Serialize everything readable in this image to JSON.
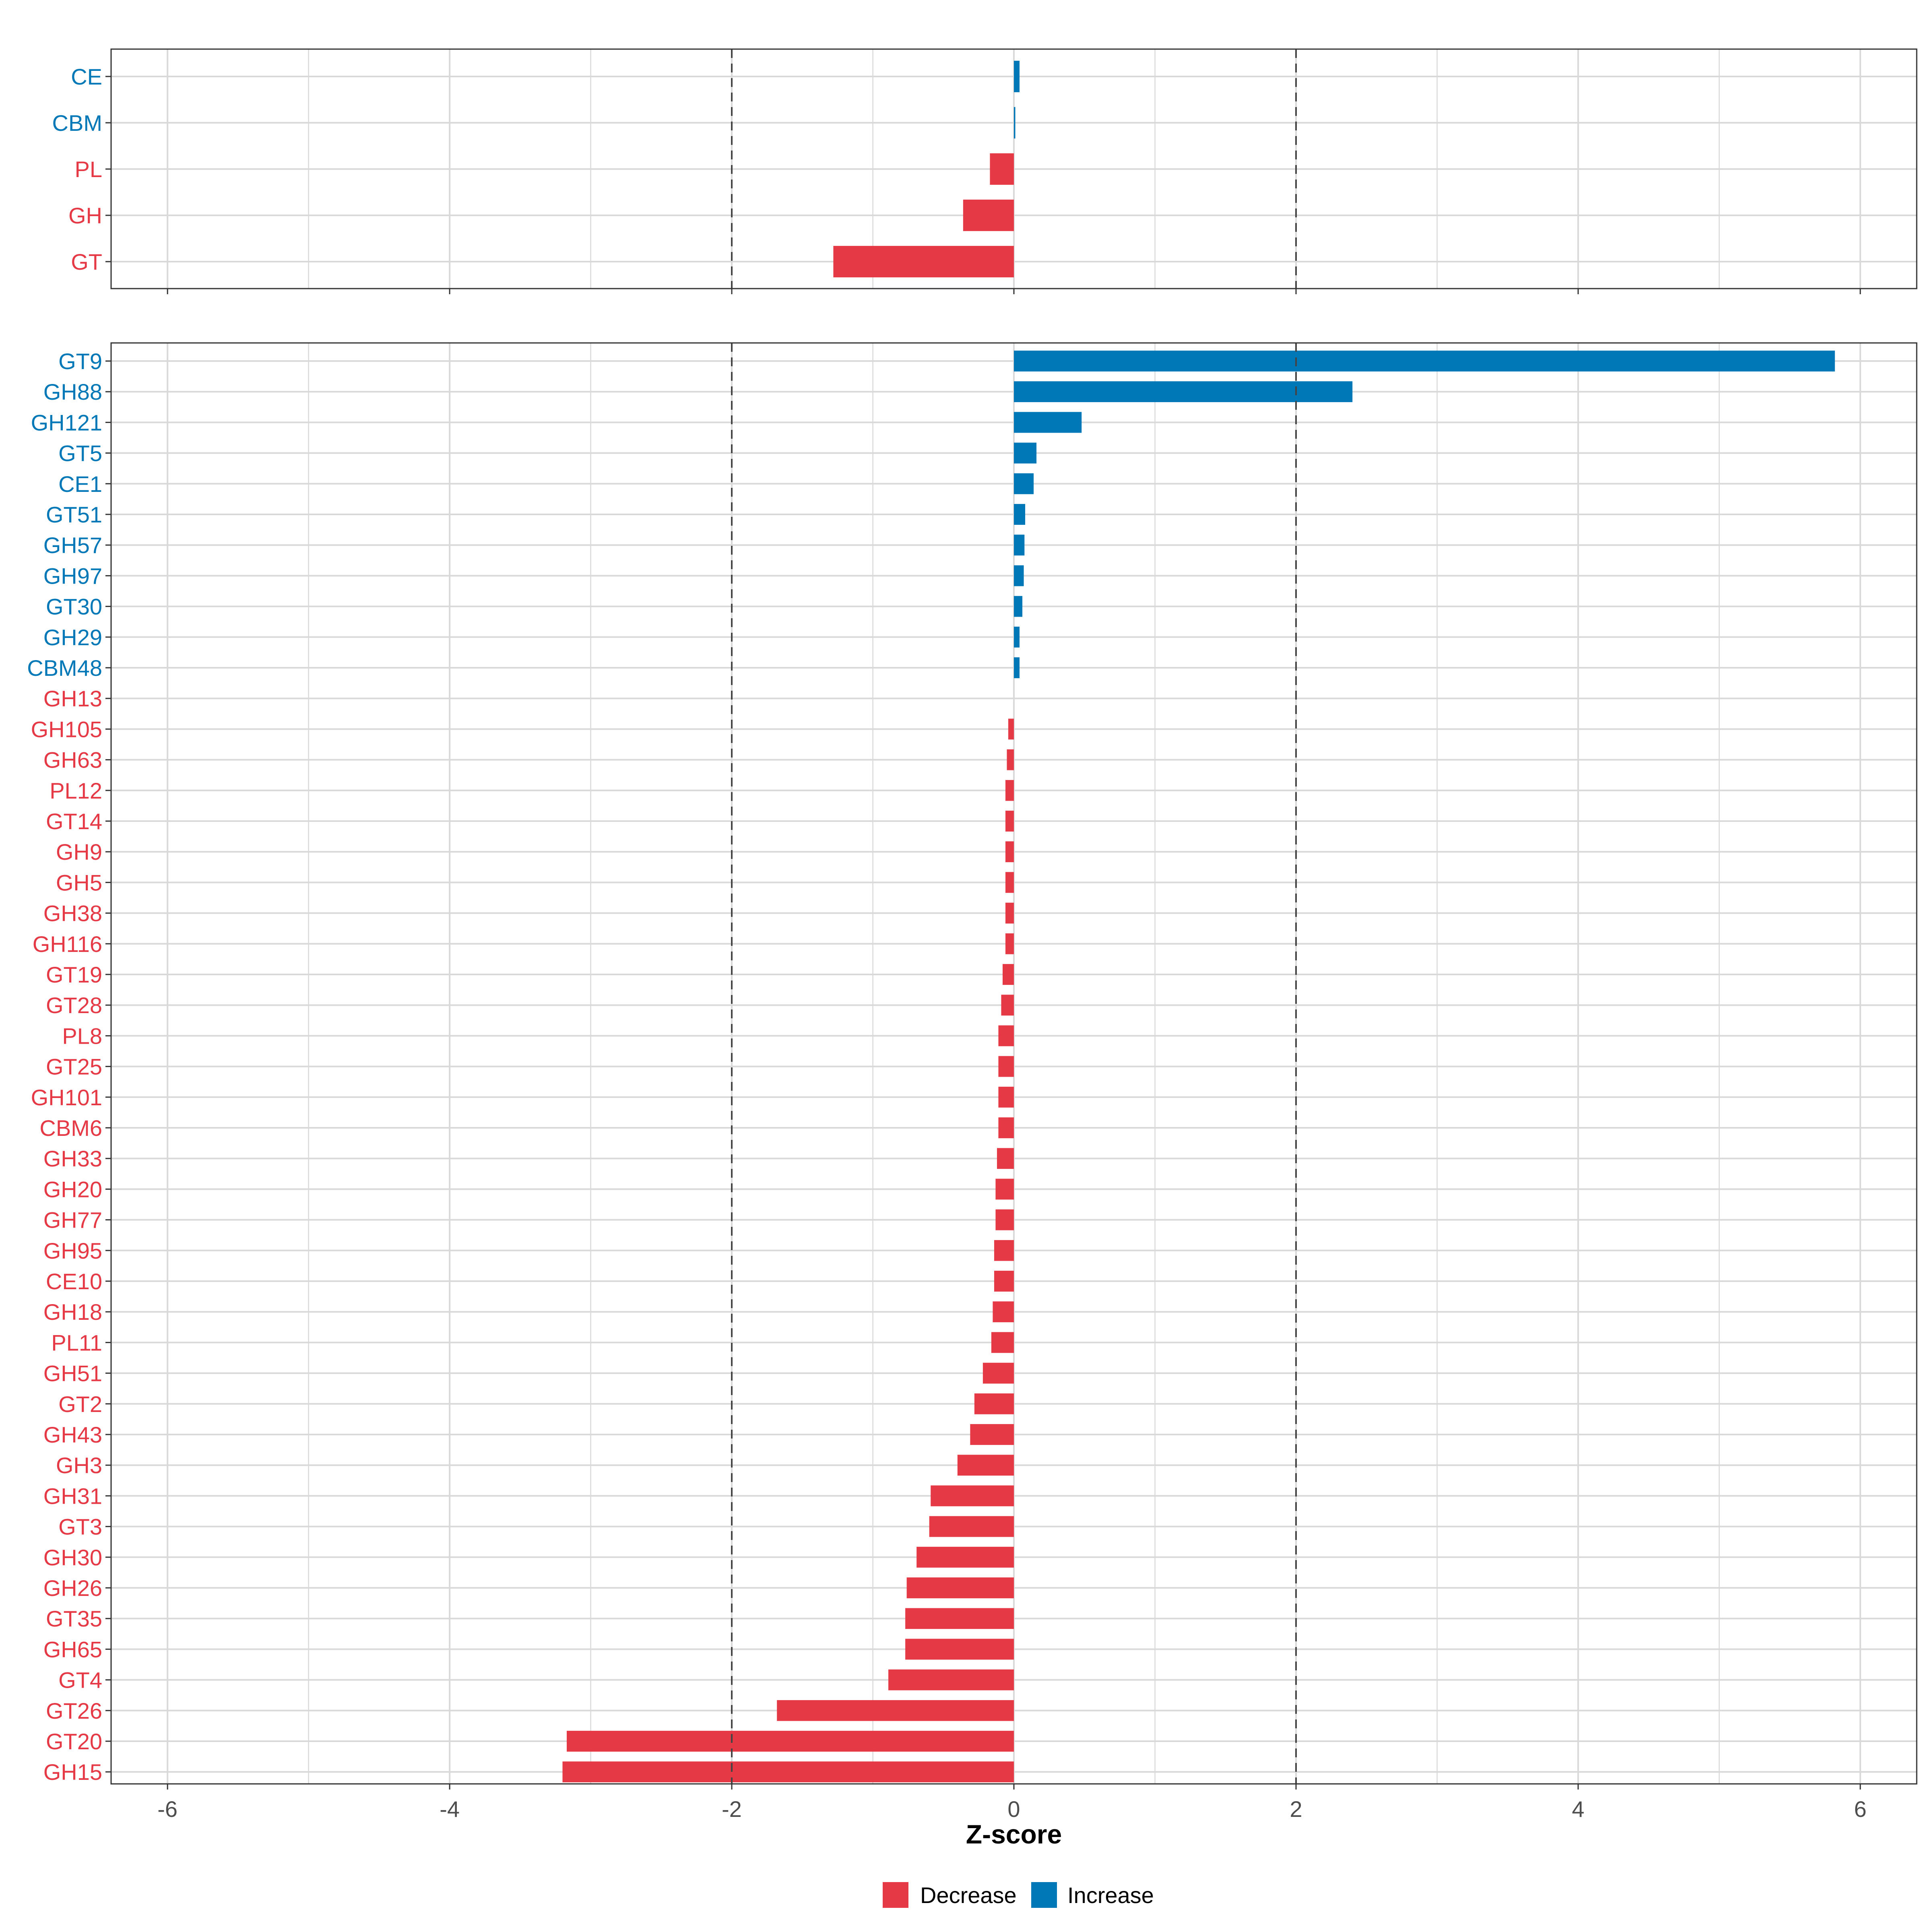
{
  "colors": {
    "decrease": "#E63946",
    "increase": "#0077B6",
    "grid": "#D9D9D9",
    "panel_border": "#333333",
    "reference_line": "#444444",
    "tick_text": "#4D4D4D"
  },
  "chart_data": {
    "type": "bar",
    "orientation": "horizontal",
    "xlabel": "Z-score",
    "xlim": [
      -6.4,
      6.4
    ],
    "x_ticks": [
      -6,
      -4,
      -2,
      0,
      2,
      4,
      6
    ],
    "x_tick_labels": [
      "-6",
      "-4",
      "-2",
      "0",
      "2",
      "4",
      "6"
    ],
    "reference_lines": [
      -2,
      2
    ],
    "grid": true,
    "legend": {
      "placement": "bottom",
      "entries": [
        {
          "label": "Decrease",
          "color_key": "decrease"
        },
        {
          "label": "Increase",
          "color_key": "increase"
        }
      ]
    },
    "panels": [
      {
        "name": "cazyme-classes",
        "categories": [
          "CE",
          "CBM",
          "PL",
          "GH",
          "GT"
        ],
        "values": [
          0.04,
          0.01,
          -0.17,
          -0.36,
          -1.28
        ]
      },
      {
        "name": "cazyme-families",
        "categories": [
          "GT9",
          "GH88",
          "GH121",
          "GT5",
          "CE1",
          "GT51",
          "GH57",
          "GH97",
          "GT30",
          "GH29",
          "CBM48",
          "GH13",
          "GH105",
          "GH63",
          "PL12",
          "GT14",
          "GH9",
          "GH5",
          "GH38",
          "GH116",
          "GT19",
          "GT28",
          "PL8",
          "GT25",
          "GH101",
          "CBM6",
          "GH33",
          "GH20",
          "GH77",
          "GH95",
          "CE10",
          "GH18",
          "PL11",
          "GH51",
          "GT2",
          "GH43",
          "GH3",
          "GH31",
          "GT3",
          "GH30",
          "GH26",
          "GT35",
          "GH65",
          "GT4",
          "GT26",
          "GT20",
          "GH15"
        ],
        "values": [
          5.82,
          2.4,
          0.48,
          0.16,
          0.14,
          0.08,
          0.075,
          0.07,
          0.06,
          0.04,
          0.04,
          0.0,
          -0.04,
          -0.05,
          -0.06,
          -0.06,
          -0.06,
          -0.06,
          -0.06,
          -0.06,
          -0.08,
          -0.09,
          -0.11,
          -0.11,
          -0.11,
          -0.11,
          -0.12,
          -0.13,
          -0.13,
          -0.14,
          -0.14,
          -0.15,
          -0.16,
          -0.22,
          -0.28,
          -0.31,
          -0.4,
          -0.59,
          -0.6,
          -0.69,
          -0.76,
          -0.77,
          -0.77,
          -0.89,
          -1.68,
          -3.17,
          -3.2
        ]
      }
    ]
  }
}
